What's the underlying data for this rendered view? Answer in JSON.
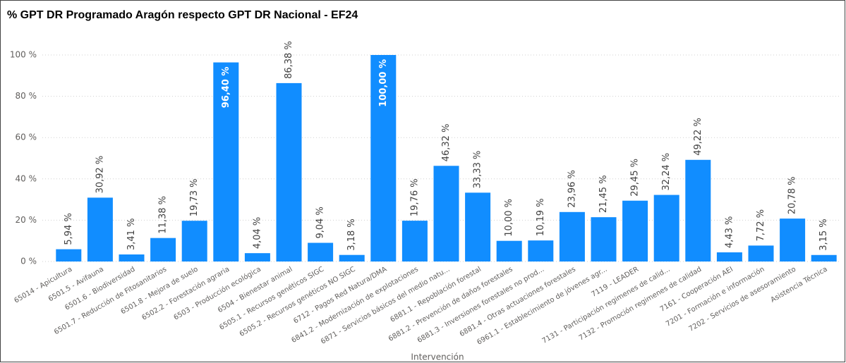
{
  "chart_data": {
    "type": "bar",
    "title": "% GPT DR Programado Aragón respecto GPT DR Nacional - EF24",
    "x_label": "Intervención",
    "categories": [
      "65014 - Apicultura",
      "6501.5 - Avifauna",
      "6501.6 - Biodiversidad",
      "6501.7 - Reducción de Fitosanitarios",
      "6501.8 - Mejora de suelo",
      "6502.2 - Forestación agraria",
      "6503 - Producción ecológica",
      "6504 - Bienestar animal",
      "6505.1 - Recursos genéticos SIGC",
      "6505.2 - Recursos genéticos NO SIGC",
      "6712 - Pagos Red Natura/DMA",
      "6841.2 - Modernización de explotaciones",
      "6871 - Servicios básicos del medio natu...",
      "6881.1 - Repoblación forestal",
      "6881.2 - Prevención de daños forestales",
      "6881.3 - Inversiones forestales no prod...",
      "6881.4 - Otras actuaciones forestales",
      "6961.1 - Establecimiento de jóvenes agr...",
      "7119 - LEADER",
      "7131 - Participación regimenes de calid...",
      "7132 - Promoción regimenes de calidad",
      "7161 - Cooperación AEI",
      "7201 - Formación e información",
      "7202 - Servicios de asesoramiento",
      "Asistencia Técnica"
    ],
    "values": [
      5.94,
      30.92,
      3.41,
      11.38,
      19.73,
      96.4,
      4.04,
      86.38,
      9.04,
      3.18,
      100.0,
      19.76,
      46.32,
      33.33,
      10.0,
      10.19,
      23.96,
      21.45,
      29.45,
      32.24,
      49.22,
      4.43,
      7.72,
      20.78,
      3.15
    ],
    "value_labels": [
      "5,94 %",
      "30,92 %",
      "3,41 %",
      "11,38 %",
      "19,73 %",
      "96,40 %",
      "4,04 %",
      "86,38 %",
      "9,04 %",
      "3,18 %",
      "100,00 %",
      "19,76 %",
      "46,32 %",
      "33,33 %",
      "10,00 %",
      "10,19 %",
      "23,96 %",
      "21,45 %",
      "29,45 %",
      "32,24 %",
      "49,22 %",
      "4,43 %",
      "7,72 %",
      "20,78 %",
      "3,15 %"
    ],
    "color": "#118dff",
    "ylim": [
      0,
      100
    ],
    "yticks": [
      {
        "value": 0,
        "label": "0 %"
      },
      {
        "value": 20,
        "label": "20 %"
      },
      {
        "value": 40,
        "label": "40 %"
      },
      {
        "value": 60,
        "label": "60 %"
      },
      {
        "value": 80,
        "label": "80 %"
      },
      {
        "value": 100,
        "label": "100 %"
      }
    ],
    "grid": true
  }
}
